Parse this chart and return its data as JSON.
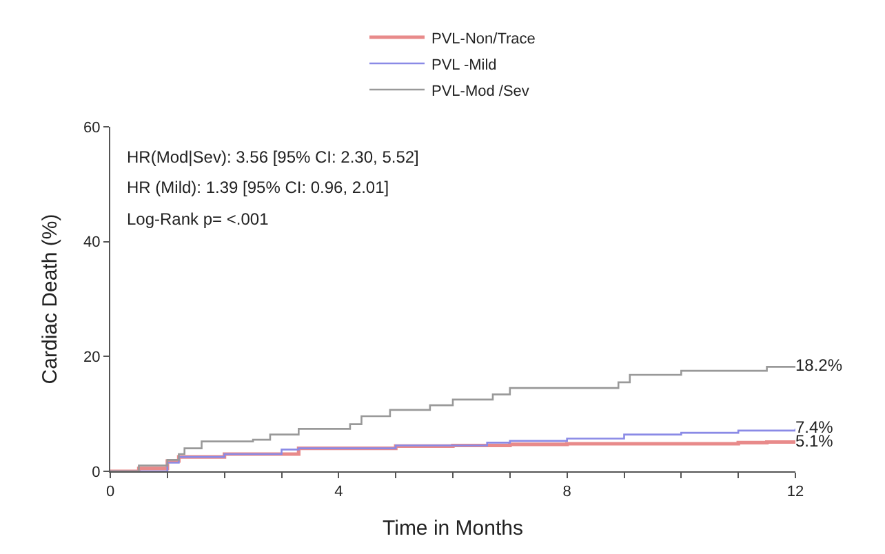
{
  "chart_data": {
    "type": "step",
    "xlabel": "Time in Months",
    "ylabel": "Cardiac Death (%)",
    "xlim": [
      0,
      12
    ],
    "ylim": [
      0,
      60
    ],
    "xticks": [
      0,
      {
        "value": 1,
        "label": null
      },
      {
        "value": 2,
        "label": null
      },
      {
        "value": 3,
        "label": null
      },
      4,
      {
        "value": 5,
        "label": null
      },
      {
        "value": 6,
        "label": null
      },
      {
        "value": 7,
        "label": null
      },
      8,
      {
        "value": 9,
        "label": null
      },
      {
        "value": 10,
        "label": null
      },
      {
        "value": 11,
        "label": null
      },
      12
    ],
    "yticks": [
      0,
      20,
      40,
      60
    ],
    "legend": "top",
    "marker": "none",
    "line_style": "solid",
    "series": [
      {
        "name": "PVL-Non/Trace",
        "color": "#e88a8a",
        "x": [
          0,
          0.5,
          1,
          1.2,
          2,
          3.3,
          5,
          6,
          7,
          8,
          11,
          11.5,
          12
        ],
        "values": [
          0,
          0.5,
          1.8,
          2.5,
          3,
          4,
          4.4,
          4.5,
          4.7,
          4.8,
          5,
          5.1,
          5.1
        ],
        "value_labels": [
          null,
          null,
          null,
          null,
          null,
          null,
          null,
          null,
          null,
          null,
          null,
          null,
          "5.1%"
        ]
      },
      {
        "name": "PVL -Mild",
        "color": "#8a8ae6",
        "x": [
          0,
          1,
          1.2,
          2,
          3,
          3.3,
          5,
          6.6,
          7,
          8,
          9,
          10,
          11,
          12
        ],
        "values": [
          0,
          1.5,
          2.5,
          3,
          3.8,
          4,
          4.5,
          5,
          5.3,
          5.7,
          6.4,
          6.7,
          7.1,
          7.4
        ],
        "value_labels": [
          null,
          null,
          null,
          null,
          null,
          null,
          null,
          null,
          null,
          null,
          null,
          null,
          null,
          "7.4%"
        ]
      },
      {
        "name": "PVL-Mod /Sev",
        "color": "#999999",
        "x": [
          0,
          0.5,
          1,
          1.2,
          1.3,
          1.6,
          2.5,
          2.8,
          3.3,
          4.2,
          4.4,
          4.9,
          5.6,
          6,
          6.7,
          7,
          8.9,
          9.1,
          10,
          11.5,
          12
        ],
        "values": [
          0,
          1,
          2,
          3,
          4,
          5.2,
          5.5,
          6.4,
          7.4,
          8.2,
          9.6,
          10.7,
          11.5,
          12.5,
          13.4,
          14.5,
          15.5,
          16.8,
          17.5,
          18.2,
          18.2
        ],
        "value_labels": [
          null,
          null,
          null,
          null,
          null,
          null,
          null,
          null,
          null,
          null,
          null,
          null,
          null,
          null,
          null,
          null,
          null,
          null,
          null,
          null,
          "18.2%"
        ]
      }
    ],
    "annotations": [
      "HR(Mod|Sev): 3.56 [95% CI: 2.30, 5.52]",
      "HR (Mild): 1.39 [95% CI: 0.96, 2.01]",
      "Log-Rank p= <.001"
    ]
  }
}
